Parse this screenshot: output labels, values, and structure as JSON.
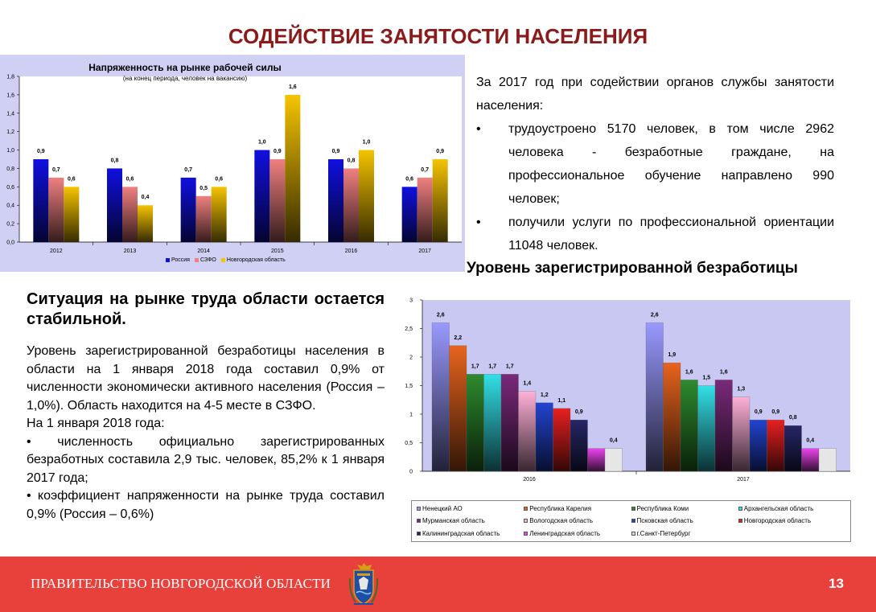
{
  "slide": {
    "title": "СОДЕЙСТВИЕ ЗАНЯТОСТИ НАСЕЛЕНИЯ",
    "intro": "За 2017 год при содействии органов службы занятости населения:",
    "bullets": [
      "трудоустроено 5170 человек, в том числе 2962 человека - безработные граждане, на профессиональное обучение направлено 990 человек;",
      "получили услуги по профессиональной ориентации 11048 человек."
    ],
    "chart2_heading": "Уровень зарегистрированной безработицы",
    "situation_heading": "Ситуация на рынке труда области остается стабильной.",
    "situation_para1": "Уровень зарегистрированной безработицы населения в области на 1 января 2018 года составил 0,9% от численности экономически активного населения (Россия – 1,0%). Область находится на 4-5 месте в СЗФО.",
    "situation_para2": "На 1 января 2018 года:",
    "situation_b1": "• численность официально зарегистрированных безработных составила 2,9 тыс. человек, 85,2% к 1 января 2017 года;",
    "situation_b2": "• коэффициент напряженности на рынке труда составил 0,9% (Россия – 0,6%)",
    "bullet_char": "•",
    "footer_text": "ПРАВИТЕЛЬСТВО НОВГОРОДСКОЙ ОБЛАСТИ",
    "page_number": "13",
    "colors": {
      "title": "#8b1a1a",
      "footer": "#e8413b"
    }
  },
  "chart_data": [
    {
      "type": "bar",
      "title": "Напряженность на рынке рабочей силы",
      "subtitle": "(на конец периода, человек на вакансию)",
      "categories": [
        "2012",
        "2013",
        "2014",
        "2015",
        "2016",
        "2017"
      ],
      "series": [
        {
          "name": "Россия",
          "values": [
            0.9,
            0.8,
            0.7,
            1.0,
            0.9,
            0.6
          ],
          "color": "#1010e0"
        },
        {
          "name": "СЗФО",
          "values": [
            0.7,
            0.6,
            0.5,
            0.9,
            0.8,
            0.7
          ],
          "color": "#f08080"
        },
        {
          "name": "Новгородская область",
          "values": [
            0.6,
            0.4,
            0.6,
            1.6,
            1.0,
            0.9
          ],
          "color": "#f5c400"
        }
      ],
      "data_labels": [
        [
          "0,9",
          "0,8",
          "0,7",
          "1,0",
          "0,9",
          "0,6"
        ],
        [
          "0,7",
          "0,6",
          "0,5",
          "0,9",
          "0,8",
          "0,7"
        ],
        [
          "0,6",
          "0,4",
          "0,6",
          "1,6",
          "1,0",
          "0,9"
        ]
      ],
      "yticks": [
        "0,0",
        "0,2",
        "0,4",
        "0,6",
        "0,8",
        "1,0",
        "1,2",
        "1,4",
        "1,6",
        "1,8"
      ],
      "ylim": [
        0,
        1.8
      ],
      "legend_position": "bottom",
      "grid": false
    },
    {
      "type": "bar",
      "categories": [
        "2016",
        "2017"
      ],
      "series": [
        {
          "name": "Ненецкий АО",
          "values": [
            2.6,
            2.6
          ],
          "color": "#9999ff"
        },
        {
          "name": "Республика Карелия",
          "values": [
            2.2,
            1.9
          ],
          "color": "#e8641e"
        },
        {
          "name": "Республика Коми",
          "values": [
            1.7,
            1.6
          ],
          "color": "#2e8b2e"
        },
        {
          "name": "Архангельская область",
          "values": [
            1.7,
            1.5
          ],
          "color": "#33e0e8"
        },
        {
          "name": "Мурманская область",
          "values": [
            1.7,
            1.6
          ],
          "color": "#7a2a7a"
        },
        {
          "name": "Вологодская область",
          "values": [
            1.4,
            1.3
          ],
          "color": "#ffb0d8"
        },
        {
          "name": "Псковская область",
          "values": [
            1.2,
            0.9
          ],
          "color": "#2244d0"
        },
        {
          "name": "Новгородская область",
          "values": [
            1.1,
            0.9
          ],
          "color": "#e82020"
        },
        {
          "name": "Калининградская область",
          "values": [
            0.9,
            0.8
          ],
          "color": "#262666"
        },
        {
          "name": "Ленинградская область",
          "values": [
            0.4,
            0.4
          ],
          "color": "#ee44ee"
        },
        {
          "name": "г.Санкт-Петербург",
          "values": [
            0.4,
            0.4
          ],
          "color": "#dcdcdc"
        }
      ],
      "data_labels": [
        [
          "2,6",
          "2,2",
          "1,7",
          "1,7",
          "1,7",
          "1,4",
          "1,2",
          "1,1",
          "0,9",
          "",
          "0,4"
        ],
        [
          "2,6",
          "1,9",
          "1,6",
          "1,5",
          "1,6",
          "1,3",
          "0,9",
          "0,9",
          "0,8",
          "0,4",
          ""
        ]
      ],
      "yticks": [
        "0",
        "0,5",
        "1",
        "1,5",
        "2",
        "2,5",
        "3"
      ],
      "ylim": [
        0,
        3
      ],
      "legend_position": "bottom",
      "grid": false
    }
  ]
}
